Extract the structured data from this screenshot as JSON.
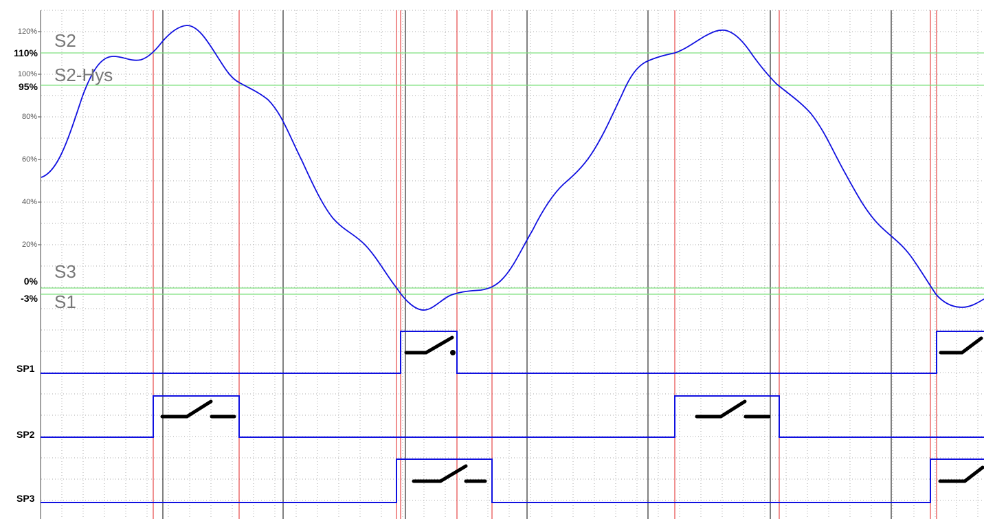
{
  "y_axis": {
    "ticks": [
      "120%",
      "100%",
      "80%",
      "60%",
      "40%",
      "20%"
    ],
    "bold_ticks": [
      "110%",
      "95%",
      "0%",
      "-3%"
    ]
  },
  "annotations": {
    "s2": "S2",
    "s2_hys": "S2-Hys",
    "s3": "S3",
    "s1": "S1"
  },
  "channels": [
    {
      "label": "SP1"
    },
    {
      "label": "SP2"
    },
    {
      "label": "SP3"
    }
  ],
  "colors": {
    "signal": "#1010e0",
    "threshold": "#7ee07e",
    "switch_marker": "#e02020",
    "reference": "#000000",
    "grid": "#aaaaaa"
  }
}
